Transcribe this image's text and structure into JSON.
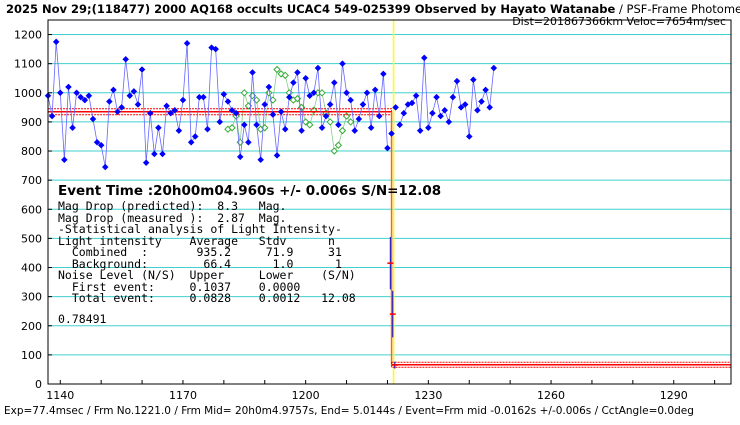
{
  "header": {
    "title_bold": "2025 Nov 29;(118477) 2000 AQ168 occults UCAC4 549-025399 Observed by Hayato Watanabe",
    "title_light": " / PSF-Frame Photometry /",
    "line2": "Dist=201867366km Veloc=7654m/sec"
  },
  "info": {
    "event_time": "Event Time :20h00m04.960s +/- 0.006s S/N=12.08",
    "lines": [
      "Mag Drop (predicted):  8.3   Mag.",
      "Mag Drop (measured ):  2.87  Mag.",
      "-Statistical analysis of Light Intensity-",
      "Light intensity    Average   Stdv      n",
      "  Combined  :       935.2     71.9     31",
      "  Background:        66.4      1.0      1",
      "Noise Level (N/S)  Upper     Lower    (S/N)",
      "  First event:     0.1037    0.0000",
      "  Total event:     0.0828    0.0012   12.08"
    ],
    "corr_value": "0.78491"
  },
  "footer": "Exp=77.4msec / Frm No.1221.0 / Frm Mid= 20h0m4.9757s, End= 5.0144s / Event=Frm mid -0.0162s +/-0.006s / CctAngle=0.0deg",
  "colors": {
    "data_series": "#0000ff",
    "comparison_series": "#33aa33",
    "model": "#ff0000",
    "event_line": "#ff6600",
    "grid": "#40d0d0",
    "event_marker": "#ffff00"
  },
  "chart_data": {
    "type": "line",
    "xlim": [
      1137,
      1304
    ],
    "ylim": [
      0,
      1250
    ],
    "xticks": [
      1140,
      1170,
      1200,
      1230,
      1260,
      1290
    ],
    "yticks": [
      0,
      100,
      200,
      300,
      400,
      500,
      600,
      700,
      800,
      900,
      1000,
      1100,
      1200
    ],
    "event_frame": 1221,
    "series": [
      {
        "role": "target",
        "x_start": 1137,
        "values": [
          990,
          920,
          1175,
          1000,
          770,
          1020,
          880,
          1000,
          985,
          975,
          990,
          910,
          830,
          820,
          745,
          970,
          1010,
          935,
          950,
          1115,
          990,
          1005,
          960,
          1080,
          760,
          930,
          790,
          880,
          790,
          955,
          930,
          940,
          870,
          975,
          1170,
          830,
          850,
          985,
          985,
          875,
          1155,
          1150,
          900,
          995,
          970,
          940,
          930,
          780,
          890,
          830,
          1070,
          890,
          770,
          960,
          1020,
          925,
          785,
          935,
          875,
          985,
          1035,
          1070,
          870,
          1050,
          990,
          1000,
          1085,
          880,
          920,
          960,
          1035,
          890,
          1100,
          1000,
          975,
          870,
          910,
          960,
          1000,
          880,
          1010,
          920,
          1065,
          810,
          860,
          950,
          890,
          930,
          960,
          965,
          990,
          870,
          1120,
          880,
          930,
          985,
          920,
          940,
          900,
          985,
          1040,
          950,
          960,
          850,
          1045,
          940,
          970,
          1010,
          950,
          1085
        ],
        "y_stdev": 71.9
      },
      {
        "role": "comparison",
        "x_start": 1181,
        "values": [
          875,
          880,
          920,
          830,
          1000,
          955,
          990,
          975,
          875,
          880,
          1000,
          975,
          1080,
          1065,
          1060,
          1000,
          975,
          980,
          950,
          900,
          890,
          940,
          1000,
          1000,
          930,
          900,
          800,
          820,
          870,
          920,
          900
        ]
      }
    ],
    "model": {
      "pre_level": 935,
      "post_level": 66,
      "x_drop": 1221
    },
    "error_bars": [
      {
        "x": 1220.7,
        "y": 415,
        "err": 90
      },
      {
        "x": 1221.3,
        "y": 240,
        "err": 80
      },
      {
        "x": 1221.8,
        "y": 65,
        "err": 12
      }
    ]
  }
}
